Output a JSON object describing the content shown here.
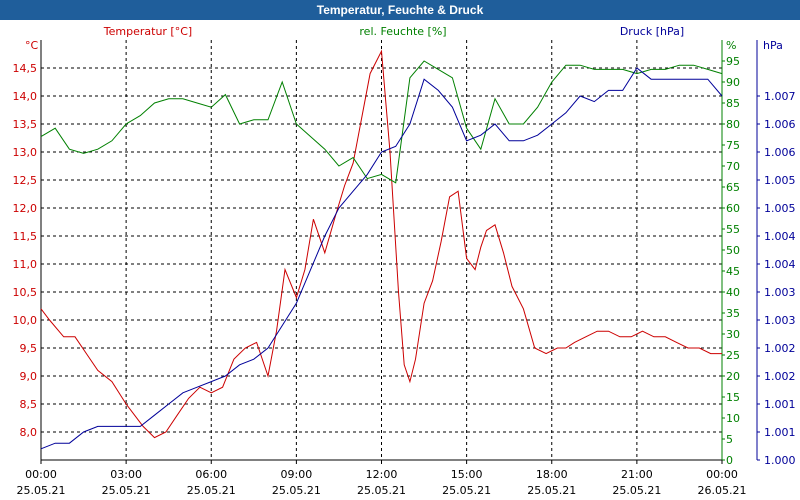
{
  "chart_data": {
    "type": "line",
    "title": "Temperatur, Feuchte & Druck",
    "x_ticks": [
      {
        "time": "00:00",
        "date": "25.05.21"
      },
      {
        "time": "03:00",
        "date": "25.05.21"
      },
      {
        "time": "06:00",
        "date": "25.05.21"
      },
      {
        "time": "09:00",
        "date": "25.05.21"
      },
      {
        "time": "12:00",
        "date": "25.05.21"
      },
      {
        "time": "15:00",
        "date": "25.05.21"
      },
      {
        "time": "18:00",
        "date": "25.05.21"
      },
      {
        "time": "21:00",
        "date": "25.05.21"
      },
      {
        "time": "00:00",
        "date": "26.05.21"
      }
    ],
    "x_range_hours": [
      0,
      24
    ],
    "axes": {
      "temperature": {
        "unit": "°C",
        "legend": "Temperatur [°C]",
        "color": "#cc0000",
        "range": [
          7.5,
          15.0
        ],
        "ticks": [
          "8,0",
          "8,5",
          "9,0",
          "9,5",
          "10,0",
          "10,5",
          "11,0",
          "11,5",
          "12,0",
          "12,5",
          "13,0",
          "13,5",
          "14,0",
          "14,5"
        ]
      },
      "humidity": {
        "unit": "%",
        "legend": "rel. Feuchte [%]",
        "color": "#008000",
        "range": [
          0,
          100
        ],
        "ticks": [
          "0",
          "5",
          "10",
          "15",
          "20",
          "25",
          "30",
          "35",
          "40",
          "45",
          "50",
          "55",
          "60",
          "65",
          "70",
          "75",
          "80",
          "85",
          "90",
          "95"
        ]
      },
      "pressure": {
        "unit": "hPa",
        "legend": "Druck [hPa]",
        "color": "#000099",
        "range": [
          1.0,
          1.0075
        ],
        "ticks": [
          "1.000",
          "1.001",
          "1.001",
          "1.002",
          "1.002",
          "1.003",
          "1.003",
          "1.004",
          "1.004",
          "1.005",
          "1.005",
          "1.006",
          "1.006",
          "1.007"
        ]
      }
    },
    "series": [
      {
        "name": "Temperatur",
        "axis": "temperature",
        "color": "#cc0000",
        "x": [
          0,
          0.3,
          0.8,
          1.2,
          1.6,
          2,
          2.5,
          3,
          3.3,
          3.6,
          4,
          4.4,
          4.8,
          5.2,
          5.6,
          6,
          6.4,
          6.8,
          7.2,
          7.6,
          8,
          8.3,
          8.6,
          9,
          9.3,
          9.6,
          10,
          10.4,
          10.7,
          11,
          11.3,
          11.6,
          12,
          12.3,
          12.6,
          12.8,
          13,
          13.2,
          13.5,
          13.8,
          14.1,
          14.4,
          14.7,
          15,
          15.3,
          15.5,
          15.7,
          16,
          16.3,
          16.6,
          17,
          17.4,
          17.8,
          18.2,
          18.5,
          18.8,
          19.2,
          19.6,
          20,
          20.4,
          20.8,
          21.2,
          21.6,
          22,
          22.4,
          22.8,
          23.2,
          23.6,
          24
        ],
        "values": [
          10.2,
          10.0,
          9.7,
          9.7,
          9.4,
          9.1,
          8.9,
          8.5,
          8.3,
          8.1,
          7.9,
          8.0,
          8.3,
          8.6,
          8.8,
          8.7,
          8.8,
          9.3,
          9.5,
          9.6,
          9.0,
          9.8,
          10.9,
          10.4,
          10.9,
          11.8,
          11.2,
          11.9,
          12.4,
          12.8,
          13.6,
          14.4,
          14.8,
          13.0,
          10.5,
          9.2,
          8.9,
          9.3,
          10.3,
          10.7,
          11.4,
          12.2,
          12.3,
          11.1,
          10.9,
          11.3,
          11.6,
          11.7,
          11.2,
          10.6,
          10.2,
          9.5,
          9.4,
          9.5,
          9.5,
          9.6,
          9.7,
          9.8,
          9.8,
          9.7,
          9.7,
          9.8,
          9.7,
          9.7,
          9.6,
          9.5,
          9.5,
          9.4,
          9.4
        ]
      },
      {
        "name": "rel. Feuchte",
        "axis": "humidity",
        "color": "#008000",
        "x": [
          0,
          0.5,
          1,
          1.5,
          2,
          2.5,
          3,
          3.5,
          4,
          4.5,
          5,
          5.5,
          6,
          6.5,
          7,
          7.5,
          8,
          8.5,
          9,
          9.5,
          10,
          10.5,
          11,
          11.5,
          12,
          12.5,
          13,
          13.5,
          14,
          14.5,
          15,
          15.5,
          16,
          16.5,
          17,
          17.5,
          18,
          18.5,
          19,
          19.5,
          20,
          20.5,
          21,
          21.5,
          22,
          22.5,
          23,
          23.5,
          24
        ],
        "values": [
          77,
          79,
          74,
          73,
          74,
          76,
          80,
          82,
          85,
          86,
          86,
          85,
          84,
          87,
          80,
          81,
          81,
          90,
          80,
          77,
          74,
          70,
          72,
          67,
          68,
          66,
          91,
          95,
          93,
          91,
          79,
          74,
          86,
          80,
          80,
          84,
          90,
          94,
          94,
          93,
          93,
          93,
          92,
          93,
          93,
          94,
          94,
          93,
          92
        ]
      },
      {
        "name": "Druck",
        "axis": "pressure",
        "color": "#000099",
        "x": [
          0,
          0.5,
          1,
          1.5,
          2,
          2.5,
          3,
          3.5,
          4,
          4.5,
          5,
          5.5,
          6,
          6.5,
          7,
          7.5,
          8,
          8.5,
          9,
          9.5,
          10,
          10.5,
          11,
          11.5,
          12,
          12.5,
          13,
          13.5,
          14,
          14.5,
          15,
          15.5,
          16,
          16.5,
          17,
          17.5,
          18,
          18.5,
          19,
          19.5,
          20,
          20.5,
          21,
          21.5,
          22,
          22.5,
          23,
          23.5,
          24
        ],
        "values": [
          1.0002,
          1.0003,
          1.0003,
          1.0005,
          1.0006,
          1.0006,
          1.0006,
          1.0006,
          1.0008,
          1.001,
          1.0012,
          1.0013,
          1.0014,
          1.0015,
          1.0017,
          1.0018,
          1.002,
          1.0024,
          1.0028,
          1.0034,
          1.004,
          1.0045,
          1.0048,
          1.0051,
          1.0055,
          1.0056,
          1.006,
          1.0068,
          1.0066,
          1.0063,
          1.0057,
          1.0058,
          1.006,
          1.0057,
          1.0057,
          1.0058,
          1.006,
          1.0062,
          1.0065,
          1.0064,
          1.0066,
          1.0066,
          1.007,
          1.0068,
          1.0068,
          1.0068,
          1.0068,
          1.0068,
          1.0065
        ]
      }
    ]
  }
}
